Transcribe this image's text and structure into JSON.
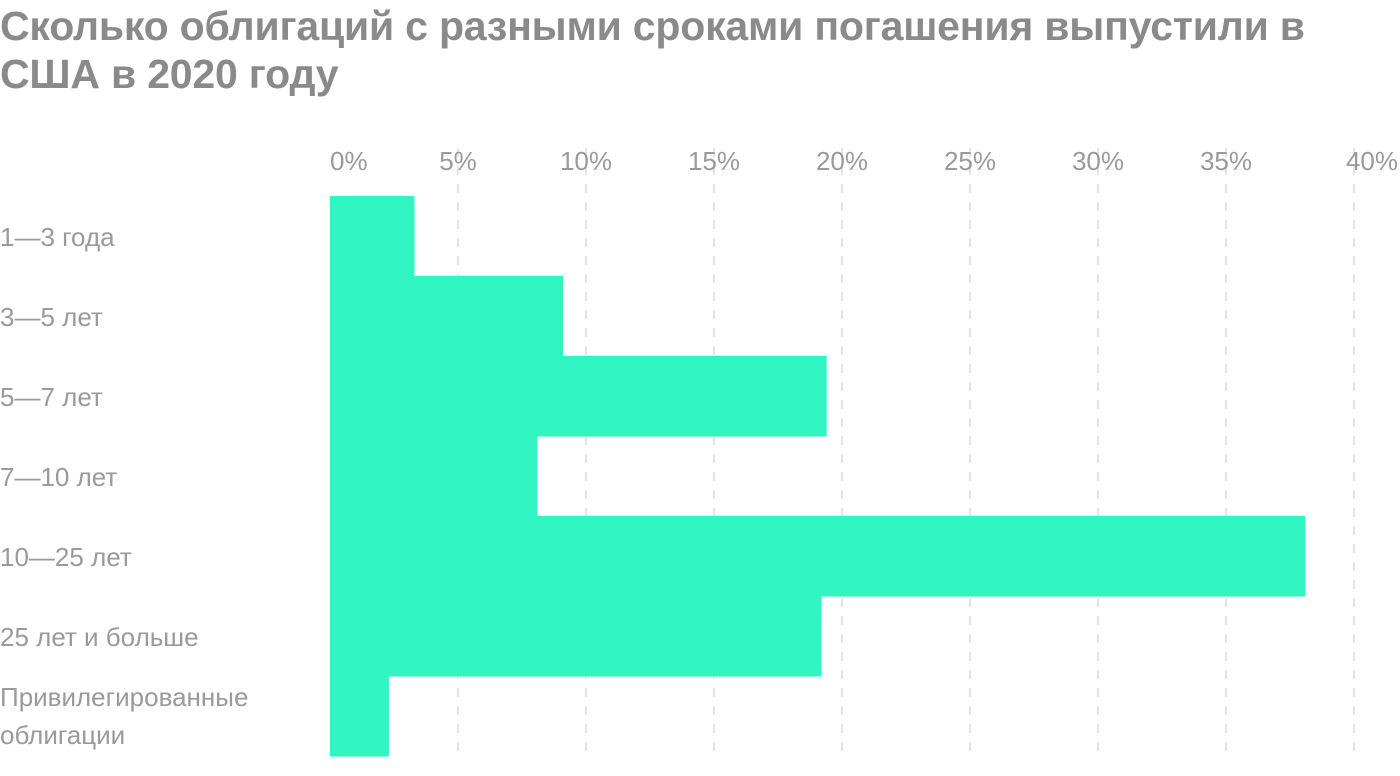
{
  "chart_data": {
    "type": "bar",
    "orientation": "horizontal",
    "title": "Сколько облигаций с разными сроками погашения выпустили в США в 2020 году",
    "categories": [
      [
        "1—3 года"
      ],
      [
        "3—5 лет"
      ],
      [
        "5—7 лет"
      ],
      [
        "7—10 лет"
      ],
      [
        "10—25 лет"
      ],
      [
        "25 лет и больше"
      ],
      [
        "Привилегированные",
        "облигации"
      ]
    ],
    "values": [
      3.3,
      9.1,
      19.4,
      8.1,
      38.1,
      19.2,
      2.3
    ],
    "unit": "%",
    "xlim": [
      0,
      40
    ],
    "xticks": [
      0,
      5,
      10,
      15,
      20,
      25,
      30,
      35,
      40
    ],
    "tick_labels": [
      "0%",
      "5%",
      "10%",
      "15%",
      "20%",
      "25%",
      "30%",
      "35%",
      "40%"
    ],
    "grid": true,
    "bar_color": "#31f4c3"
  }
}
